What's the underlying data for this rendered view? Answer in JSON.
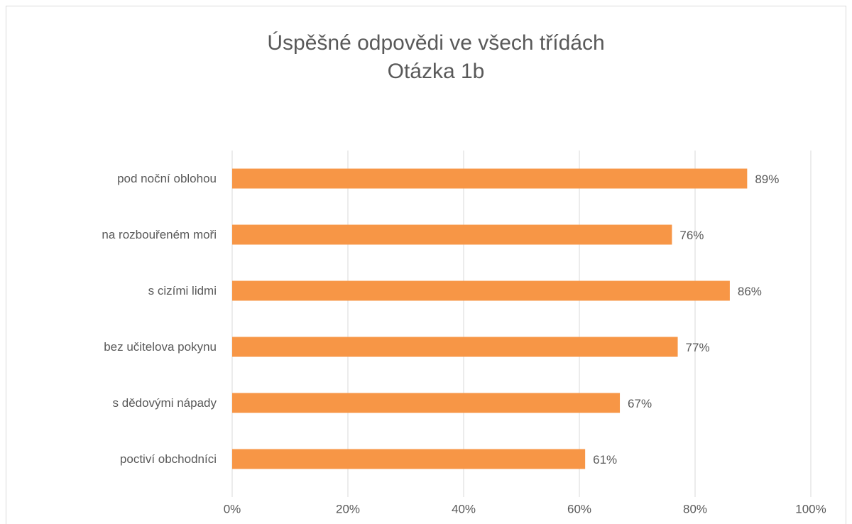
{
  "chart_data": {
    "type": "barh",
    "title": "Úspěšné odpovědi ve všech třídách",
    "subtitle": "Otázka 1b",
    "categories": [
      "pod noční oblohou",
      "na rozbouřeném moři",
      "s cizími lidmi",
      "bez učitelova pokynu",
      "s dědovými nápady",
      "poctiví obchodníci"
    ],
    "values": [
      89,
      76,
      86,
      77,
      67,
      61
    ],
    "value_labels": [
      "89%",
      "76%",
      "86%",
      "77%",
      "67%",
      "61%"
    ],
    "color": "#f79646",
    "xlim": [
      0,
      100
    ],
    "xticks": [
      {
        "value": 0,
        "label": "0%"
      },
      {
        "value": 20,
        "label": "20%"
      },
      {
        "value": 40,
        "label": "40%"
      },
      {
        "value": 60,
        "label": "60%"
      },
      {
        "value": 80,
        "label": "80%"
      },
      {
        "value": 100,
        "label": "100%"
      }
    ],
    "grid": true
  }
}
